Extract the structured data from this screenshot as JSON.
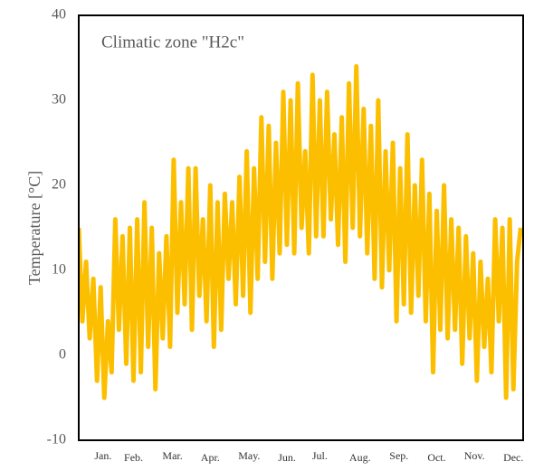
{
  "chart_data": {
    "type": "line",
    "annotation": "Climatic zone \"H2c\"",
    "y_label": "Temperature [°C]",
    "xlim": [
      0,
      365
    ],
    "xticks": [
      {
        "value": 20,
        "label": "Jan."
      },
      {
        "value": 45,
        "label": "Feb."
      },
      {
        "value": 77,
        "label": "Mar."
      },
      {
        "value": 108,
        "label": "Apr."
      },
      {
        "value": 140,
        "label": "May."
      },
      {
        "value": 171,
        "label": "Jun."
      },
      {
        "value": 198,
        "label": "Jul."
      },
      {
        "value": 231,
        "label": "Aug."
      },
      {
        "value": 263,
        "label": "Sep."
      },
      {
        "value": 294,
        "label": "Oct."
      },
      {
        "value": 325,
        "label": "Nov."
      },
      {
        "value": 357,
        "label": "Dec."
      }
    ],
    "ylim": [
      -10,
      40
    ],
    "yticks": [
      -10,
      0,
      10,
      20,
      30,
      40
    ],
    "grid": false,
    "series": [
      {
        "color": "#fcbf00",
        "x": [
          0,
          3,
          6,
          9,
          12,
          15,
          18,
          21,
          24,
          27,
          30,
          33,
          36,
          39,
          42,
          45,
          48,
          51,
          54,
          57,
          60,
          63,
          66,
          69,
          72,
          75,
          78,
          81,
          84,
          87,
          90,
          93,
          96,
          99,
          102,
          105,
          108,
          111,
          114,
          117,
          120,
          123,
          126,
          129,
          132,
          135,
          138,
          141,
          144,
          147,
          150,
          153,
          156,
          159,
          162,
          165,
          168,
          171,
          174,
          177,
          180,
          183,
          186,
          189,
          192,
          195,
          198,
          201,
          204,
          207,
          210,
          213,
          216,
          219,
          222,
          225,
          228,
          231,
          234,
          237,
          240,
          243,
          246,
          249,
          252,
          255,
          258,
          261,
          264,
          267,
          270,
          273,
          276,
          279,
          282,
          285,
          288,
          291,
          294,
          297,
          300,
          303,
          306,
          309,
          312,
          315,
          318,
          321,
          324,
          327,
          330,
          333,
          336,
          339,
          342,
          345,
          348,
          351,
          354,
          357,
          360,
          363
        ],
        "values": [
          15,
          4,
          11,
          2,
          9,
          -3,
          8,
          -5,
          4,
          -2,
          16,
          3,
          14,
          -1,
          15,
          -3,
          16,
          -2,
          18,
          1,
          15,
          -4,
          12,
          2,
          14,
          1,
          23,
          5,
          18,
          6,
          22,
          3,
          22,
          7,
          16,
          4,
          20,
          1,
          18,
          3,
          19,
          9,
          18,
          6,
          21,
          7,
          24,
          5,
          22,
          9,
          28,
          11,
          27,
          9,
          25,
          12,
          31,
          13,
          30,
          12,
          32,
          15,
          24,
          12,
          33,
          14,
          30,
          14,
          31,
          16,
          26,
          13,
          28,
          11,
          32,
          15,
          34,
          14,
          29,
          12,
          27,
          9,
          30,
          8,
          24,
          10,
          25,
          4,
          22,
          6,
          26,
          5,
          20,
          7,
          23,
          4,
          19,
          -2,
          17,
          3,
          20,
          2,
          16,
          3,
          15,
          -1,
          14,
          2,
          12,
          -3,
          11,
          1,
          9,
          -2,
          16,
          4,
          15,
          -5,
          16,
          -4,
          11,
          15
        ]
      }
    ]
  }
}
